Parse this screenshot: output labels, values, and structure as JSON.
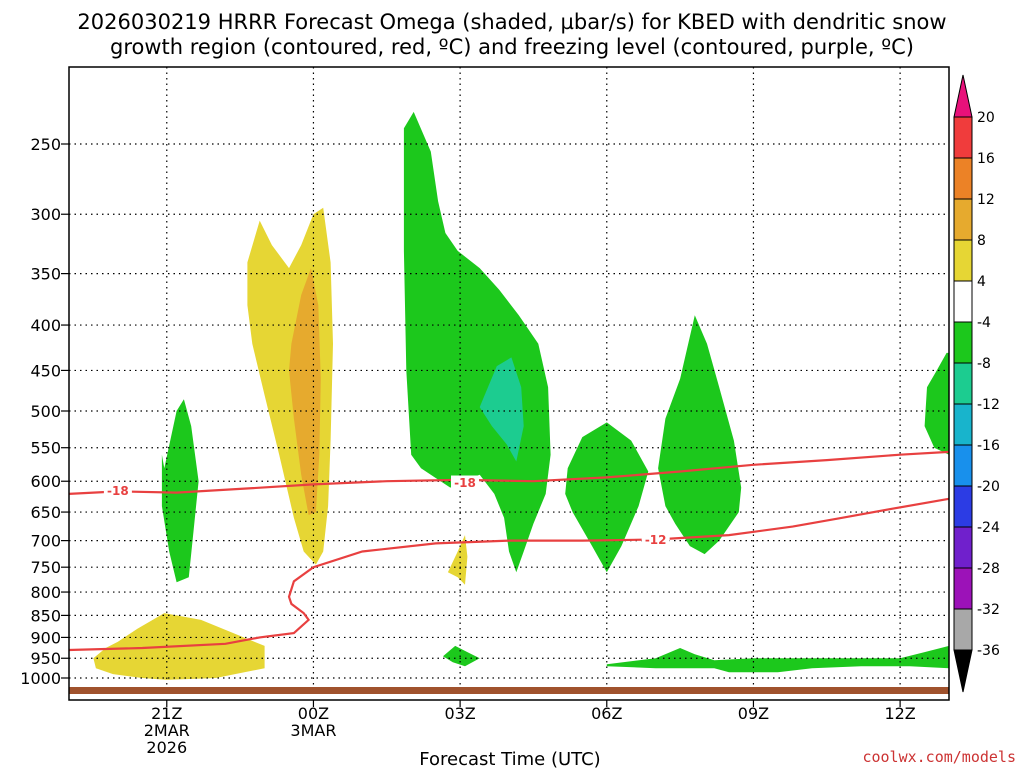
{
  "chart_data": {
    "type": "heatmap",
    "title_line1": "2026030219 HRRR Forecast Omega (shaded, µbar/s) for KBED with dendritic snow",
    "title_line2": "growth region (contoured, red, ºC) and freezing level (contoured, purple, ºC)",
    "xlabel": "Forecast Time (UTC)",
    "credit": "coolwx.com/models",
    "credit_color": "#cc3333",
    "x_unit": "forecast hour",
    "x_ticks": [
      {
        "h": 2,
        "lines": [
          "21Z",
          "2MAR",
          "2026"
        ]
      },
      {
        "h": 5,
        "lines": [
          "00Z",
          "3MAR"
        ]
      },
      {
        "h": 8,
        "lines": [
          "03Z"
        ]
      },
      {
        "h": 11,
        "lines": [
          "06Z"
        ]
      },
      {
        "h": 14,
        "lines": [
          "09Z"
        ]
      },
      {
        "h": 17,
        "lines": [
          "12Z"
        ]
      }
    ],
    "xlim": [
      0,
      18
    ],
    "y_unit": "mb",
    "y_scale": "log-pressure, reversed",
    "y_ticks": [
      250,
      300,
      350,
      400,
      450,
      500,
      550,
      600,
      650,
      700,
      750,
      800,
      850,
      900,
      950,
      1000
    ],
    "ylim": [
      200,
      1025
    ],
    "grid": "dotted",
    "colorbar": {
      "levels": [
        20,
        16,
        12,
        8,
        4,
        -4,
        -8,
        -12,
        -16,
        -20,
        -24,
        -28,
        -32,
        -36
      ],
      "colors": [
        "#e8117a",
        "#f03c3c",
        "#ec8226",
        "#e6aa2e",
        "#e6d634",
        "#ffffff",
        "#1cc81c",
        "#1ccc90",
        "#18b4cc",
        "#1890ec",
        "#2c3ce4",
        "#7020cc",
        "#9c12b8",
        "#a8a8a8",
        "#000000"
      ]
    },
    "regions": [
      {
        "cls": "green",
        "color": "#1cc81c",
        "points": [
          [
            1.95,
            580
          ],
          [
            2.2,
            500
          ],
          [
            2.35,
            485
          ],
          [
            2.5,
            520
          ],
          [
            2.65,
            600
          ],
          [
            2.55,
            680
          ],
          [
            2.45,
            770
          ],
          [
            2.2,
            780
          ],
          [
            2.05,
            720
          ],
          [
            1.9,
            640
          ],
          [
            1.9,
            560
          ]
        ]
      },
      {
        "cls": "yellow",
        "color": "#e6d634",
        "points": [
          [
            3.65,
            340
          ],
          [
            3.9,
            305
          ],
          [
            4.15,
            325
          ],
          [
            4.5,
            345
          ],
          [
            4.75,
            325
          ],
          [
            5.0,
            300
          ],
          [
            5.2,
            295
          ],
          [
            5.35,
            340
          ],
          [
            5.4,
            420
          ],
          [
            5.35,
            540
          ],
          [
            5.3,
            640
          ],
          [
            5.2,
            720
          ],
          [
            5.05,
            745
          ],
          [
            4.8,
            720
          ],
          [
            4.6,
            660
          ],
          [
            4.3,
            560
          ],
          [
            4.0,
            480
          ],
          [
            3.75,
            420
          ],
          [
            3.65,
            380
          ]
        ]
      },
      {
        "cls": "orange",
        "color": "#e6aa2e",
        "points": [
          [
            4.55,
            420
          ],
          [
            4.75,
            370
          ],
          [
            4.95,
            345
          ],
          [
            5.1,
            380
          ],
          [
            5.15,
            460
          ],
          [
            5.12,
            560
          ],
          [
            5.05,
            650
          ],
          [
            4.9,
            655
          ],
          [
            4.75,
            590
          ],
          [
            4.6,
            510
          ],
          [
            4.5,
            450
          ]
        ]
      },
      {
        "cls": "green",
        "color": "#1cc81c",
        "points": [
          [
            6.85,
            240
          ],
          [
            7.05,
            230
          ],
          [
            7.4,
            255
          ],
          [
            7.55,
            290
          ],
          [
            7.7,
            315
          ],
          [
            7.95,
            330
          ],
          [
            8.4,
            345
          ],
          [
            8.8,
            365
          ],
          [
            9.2,
            390
          ],
          [
            9.6,
            420
          ],
          [
            9.8,
            470
          ],
          [
            9.85,
            560
          ],
          [
            9.75,
            620
          ],
          [
            9.5,
            670
          ],
          [
            9.3,
            720
          ],
          [
            9.15,
            760
          ],
          [
            9.0,
            720
          ],
          [
            8.9,
            660
          ],
          [
            8.7,
            620
          ],
          [
            8.4,
            590
          ],
          [
            8.05,
            600
          ],
          [
            7.8,
            610
          ],
          [
            7.5,
            595
          ],
          [
            7.2,
            580
          ],
          [
            7.0,
            560
          ],
          [
            6.9,
            450
          ],
          [
            6.85,
            330
          ]
        ]
      },
      {
        "cls": "teal",
        "color": "#1ccc90",
        "points": [
          [
            8.5,
            480
          ],
          [
            8.75,
            445
          ],
          [
            9.05,
            435
          ],
          [
            9.25,
            470
          ],
          [
            9.3,
            520
          ],
          [
            9.15,
            570
          ],
          [
            8.95,
            545
          ],
          [
            8.65,
            520
          ],
          [
            8.4,
            495
          ]
        ]
      },
      {
        "cls": "yellow",
        "color": "#e6d634",
        "points": [
          [
            7.75,
            760
          ],
          [
            7.95,
            720
          ],
          [
            8.1,
            690
          ],
          [
            8.15,
            730
          ],
          [
            8.1,
            785
          ],
          [
            7.95,
            770
          ]
        ]
      },
      {
        "cls": "green",
        "color": "#1cc81c",
        "points": [
          [
            7.65,
            945
          ],
          [
            7.9,
            920
          ],
          [
            8.15,
            935
          ],
          [
            8.4,
            950
          ],
          [
            8.1,
            970
          ],
          [
            7.85,
            960
          ]
        ]
      },
      {
        "cls": "green",
        "color": "#1cc81c",
        "points": [
          [
            10.2,
            580
          ],
          [
            10.5,
            535
          ],
          [
            11.0,
            515
          ],
          [
            11.5,
            540
          ],
          [
            11.85,
            585
          ],
          [
            11.65,
            640
          ],
          [
            11.3,
            710
          ],
          [
            11.0,
            760
          ],
          [
            10.7,
            710
          ],
          [
            10.3,
            650
          ],
          [
            10.15,
            620
          ]
        ]
      },
      {
        "cls": "green",
        "color": "#1cc81c",
        "points": [
          [
            12.2,
            510
          ],
          [
            12.5,
            460
          ],
          [
            12.8,
            390
          ],
          [
            13.05,
            420
          ],
          [
            13.3,
            470
          ],
          [
            13.6,
            540
          ],
          [
            13.75,
            610
          ],
          [
            13.7,
            650
          ],
          [
            13.3,
            700
          ],
          [
            13.0,
            725
          ],
          [
            12.7,
            710
          ],
          [
            12.4,
            670
          ],
          [
            12.2,
            640
          ],
          [
            12.05,
            580
          ]
        ]
      },
      {
        "cls": "yellow",
        "color": "#e6d634",
        "points": [
          [
            0.5,
            950
          ],
          [
            0.75,
            925
          ],
          [
            1.0,
            910
          ],
          [
            1.4,
            880
          ],
          [
            1.95,
            845
          ],
          [
            2.7,
            860
          ],
          [
            3.25,
            885
          ],
          [
            4.0,
            920
          ],
          [
            4.0,
            975
          ],
          [
            3.0,
            1000
          ],
          [
            2.0,
            1005
          ],
          [
            1.5,
            1000
          ],
          [
            0.9,
            990
          ],
          [
            0.55,
            975
          ]
        ]
      },
      {
        "cls": "green",
        "color": "#1cc81c",
        "points": [
          [
            11.0,
            965
          ],
          [
            12.0,
            950
          ],
          [
            12.5,
            925
          ],
          [
            12.8,
            940
          ],
          [
            13.2,
            955
          ],
          [
            14.0,
            950
          ],
          [
            15.0,
            950
          ],
          [
            16.4,
            950
          ],
          [
            17.0,
            950
          ],
          [
            17.5,
            935
          ],
          [
            18.0,
            920
          ],
          [
            18.0,
            975
          ],
          [
            17.2,
            970
          ],
          [
            16.2,
            970
          ],
          [
            15.2,
            975
          ],
          [
            14.5,
            985
          ],
          [
            13.5,
            985
          ],
          [
            13.2,
            975
          ],
          [
            12.0,
            975
          ],
          [
            11.0,
            970
          ]
        ]
      },
      {
        "cls": "green",
        "color": "#1cc81c",
        "points": [
          [
            17.55,
            470
          ],
          [
            17.75,
            450
          ],
          [
            17.95,
            430
          ],
          [
            18.0,
            430
          ],
          [
            18.0,
            560
          ],
          [
            17.7,
            550
          ],
          [
            17.5,
            520
          ]
        ]
      }
    ],
    "contours": [
      {
        "label": "-18",
        "color": "#e84040",
        "label_positions": [
          [
            1.0,
            615
          ],
          [
            8.1,
            602
          ]
        ],
        "points": [
          [
            0,
            620
          ],
          [
            1.0,
            616
          ],
          [
            2.2,
            618
          ],
          [
            3.5,
            612
          ],
          [
            5.0,
            605
          ],
          [
            6.5,
            600
          ],
          [
            8.0,
            598
          ],
          [
            9.5,
            600
          ],
          [
            11.0,
            594
          ],
          [
            12.5,
            585
          ],
          [
            14.0,
            575
          ],
          [
            15.5,
            568
          ],
          [
            17.0,
            560
          ],
          [
            18.0,
            556
          ]
        ]
      },
      {
        "label": "-12",
        "color": "#e84040",
        "label_positions": [
          [
            12.0,
            698
          ]
        ],
        "points": [
          [
            0,
            930
          ],
          [
            1.5,
            925
          ],
          [
            3.2,
            915
          ],
          [
            3.9,
            900
          ],
          [
            4.6,
            890
          ],
          [
            4.9,
            860
          ],
          [
            4.8,
            845
          ],
          [
            4.55,
            825
          ],
          [
            4.5,
            810
          ],
          [
            4.6,
            778
          ],
          [
            5.0,
            750
          ],
          [
            6.0,
            720
          ],
          [
            7.5,
            705
          ],
          [
            9.0,
            700
          ],
          [
            10.5,
            700
          ],
          [
            12.0,
            698
          ],
          [
            13.5,
            690
          ],
          [
            14.8,
            675
          ],
          [
            15.8,
            660
          ],
          [
            16.8,
            645
          ],
          [
            18.0,
            628
          ]
        ]
      }
    ]
  }
}
